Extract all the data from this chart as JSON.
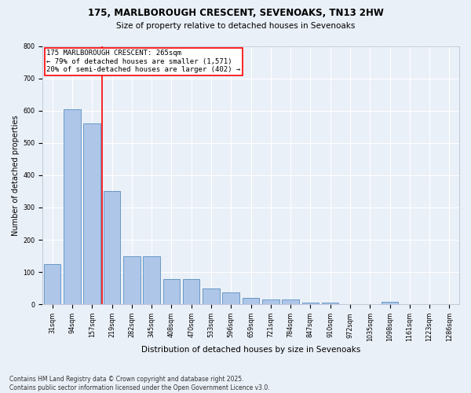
{
  "title1": "175, MARLBOROUGH CRESCENT, SEVENOAKS, TN13 2HW",
  "title2": "Size of property relative to detached houses in Sevenoaks",
  "xlabel": "Distribution of detached houses by size in Sevenoaks",
  "ylabel": "Number of detached properties",
  "categories": [
    "31sqm",
    "94sqm",
    "157sqm",
    "219sqm",
    "282sqm",
    "345sqm",
    "408sqm",
    "470sqm",
    "533sqm",
    "596sqm",
    "659sqm",
    "721sqm",
    "784sqm",
    "847sqm",
    "910sqm",
    "972sqm",
    "1035sqm",
    "1098sqm",
    "1161sqm",
    "1223sqm",
    "1286sqm"
  ],
  "values": [
    125,
    605,
    560,
    350,
    148,
    148,
    78,
    78,
    50,
    38,
    20,
    15,
    15,
    5,
    5,
    0,
    0,
    8,
    0,
    0,
    0
  ],
  "bar_color": "#aec6e8",
  "bar_edge_color": "#5a8fc0",
  "vline_color": "red",
  "vline_x": 2.5,
  "annotation_text": "175 MARLBOROUGH CRESCENT: 265sqm\n← 79% of detached houses are smaller (1,571)\n20% of semi-detached houses are larger (402) →",
  "annotation_box_color": "white",
  "annotation_box_edge": "red",
  "bg_color": "#eaf0f8",
  "footnote": "Contains HM Land Registry data © Crown copyright and database right 2025.\nContains public sector information licensed under the Open Government Licence v3.0.",
  "ylim": [
    0,
    800
  ],
  "yticks": [
    0,
    100,
    200,
    300,
    400,
    500,
    600,
    700,
    800
  ],
  "title1_fontsize": 8.5,
  "title2_fontsize": 7.5,
  "xlabel_fontsize": 7.5,
  "ylabel_fontsize": 7.0,
  "tick_fontsize": 5.8,
  "ann_fontsize": 6.5,
  "footnote_fontsize": 5.5
}
